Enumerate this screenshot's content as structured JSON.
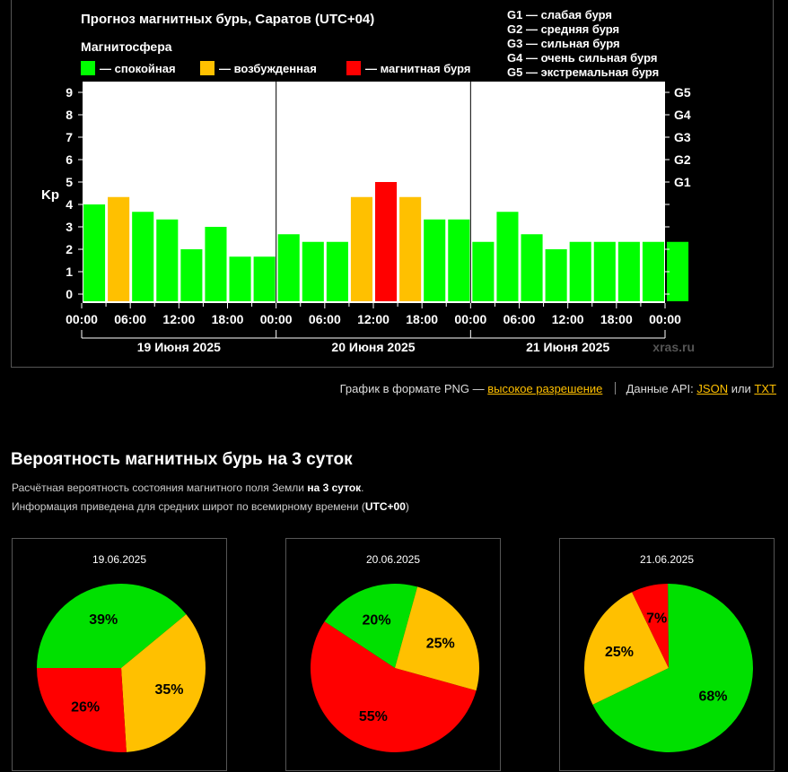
{
  "chart_data": {
    "type": "bar",
    "title": "Прогноз магнитных бурь, Саратов (UTC+04)",
    "ylabel": "Kp",
    "ylim": [
      0,
      9
    ],
    "yticks": [
      "0",
      "1",
      "2",
      "3",
      "4",
      "5",
      "6",
      "7",
      "8",
      "9"
    ],
    "right_axis_labels": [
      {
        "value": 5,
        "label": "G1"
      },
      {
        "value": 6,
        "label": "G2"
      },
      {
        "value": 7,
        "label": "G3"
      },
      {
        "value": 8,
        "label": "G4"
      },
      {
        "value": 9,
        "label": "G5"
      }
    ],
    "xticks": [
      "00:00",
      "06:00",
      "12:00",
      "18:00",
      "00:00",
      "06:00",
      "12:00",
      "18:00",
      "00:00",
      "06:00",
      "12:00",
      "18:00",
      "00:00"
    ],
    "day_labels": [
      "19 Июня 2025",
      "20 Июня 2025",
      "21 Июня 2025"
    ],
    "bar_hours": 3,
    "start_offset_hours": 0,
    "values": [
      4.0,
      4.33,
      3.67,
      3.33,
      2.0,
      3.0,
      1.67,
      1.67,
      2.67,
      2.33,
      2.33,
      4.33,
      5.0,
      4.33,
      3.33,
      3.33,
      2.33,
      3.67,
      2.67,
      2.0,
      2.33,
      2.33,
      2.33,
      2.33,
      2.33
    ],
    "states": [
      "quiet",
      "excited",
      "quiet",
      "quiet",
      "quiet",
      "quiet",
      "quiet",
      "quiet",
      "quiet",
      "quiet",
      "quiet",
      "excited",
      "storm",
      "excited",
      "quiet",
      "quiet",
      "quiet",
      "quiet",
      "quiet",
      "quiet",
      "quiet",
      "quiet",
      "quiet",
      "quiet",
      "quiet"
    ],
    "legend_title": "Магнитосфера",
    "legend": [
      {
        "key": "quiet",
        "label": "— спокойная",
        "color": "#00ff00"
      },
      {
        "key": "excited",
        "label": "— возбужденная",
        "color": "#ffc000"
      },
      {
        "key": "storm",
        "label": "— магнитная буря",
        "color": "#ff0000"
      }
    ],
    "g_legend": [
      "G1 — слабая буря",
      "G2 — средняя буря",
      "G3 — сильная буря",
      "G4 — очень сильная буря",
      "G5 — экстремальная буря"
    ],
    "watermark": "xras.ru"
  },
  "links": {
    "png_text": "График в формате PNG —",
    "png_link": "высокое разрешение",
    "api_text": "Данные API:",
    "json_link": "JSON",
    "or_text": "или",
    "txt_link": "TXT"
  },
  "probability": {
    "title": "Вероятность магнитных бурь на 3 суток",
    "desc1_pre": "Расчётная вероятность состояния магнитного поля Земли",
    "desc1_bold": "на 3 суток",
    "desc1_post": ".",
    "desc2_pre": "Информация приведена для средних широт по всемирному времени (",
    "desc2_bold": "UTC+00",
    "desc2_post": ")",
    "colors": {
      "green": "#00e000",
      "yellow": "#ffc000",
      "red": "#ff0000"
    },
    "pies": [
      {
        "date": "19.06.2025",
        "slices": [
          {
            "key": "green",
            "value": 39,
            "label": "39%"
          },
          {
            "key": "yellow",
            "value": 35,
            "label": "35%"
          },
          {
            "key": "red",
            "value": 26,
            "label": "26%"
          }
        ]
      },
      {
        "date": "20.06.2025",
        "slices": [
          {
            "key": "red",
            "value": 55,
            "label": "55%"
          },
          {
            "key": "green",
            "value": 20,
            "label": "20%"
          },
          {
            "key": "yellow",
            "value": 25,
            "label": "25%"
          }
        ]
      },
      {
        "date": "21.06.2025",
        "slices": [
          {
            "key": "green",
            "value": 68,
            "label": "68%"
          },
          {
            "key": "yellow",
            "value": 25,
            "label": "25%"
          },
          {
            "key": "red",
            "value": 7,
            "label": "7%"
          }
        ]
      }
    ]
  }
}
